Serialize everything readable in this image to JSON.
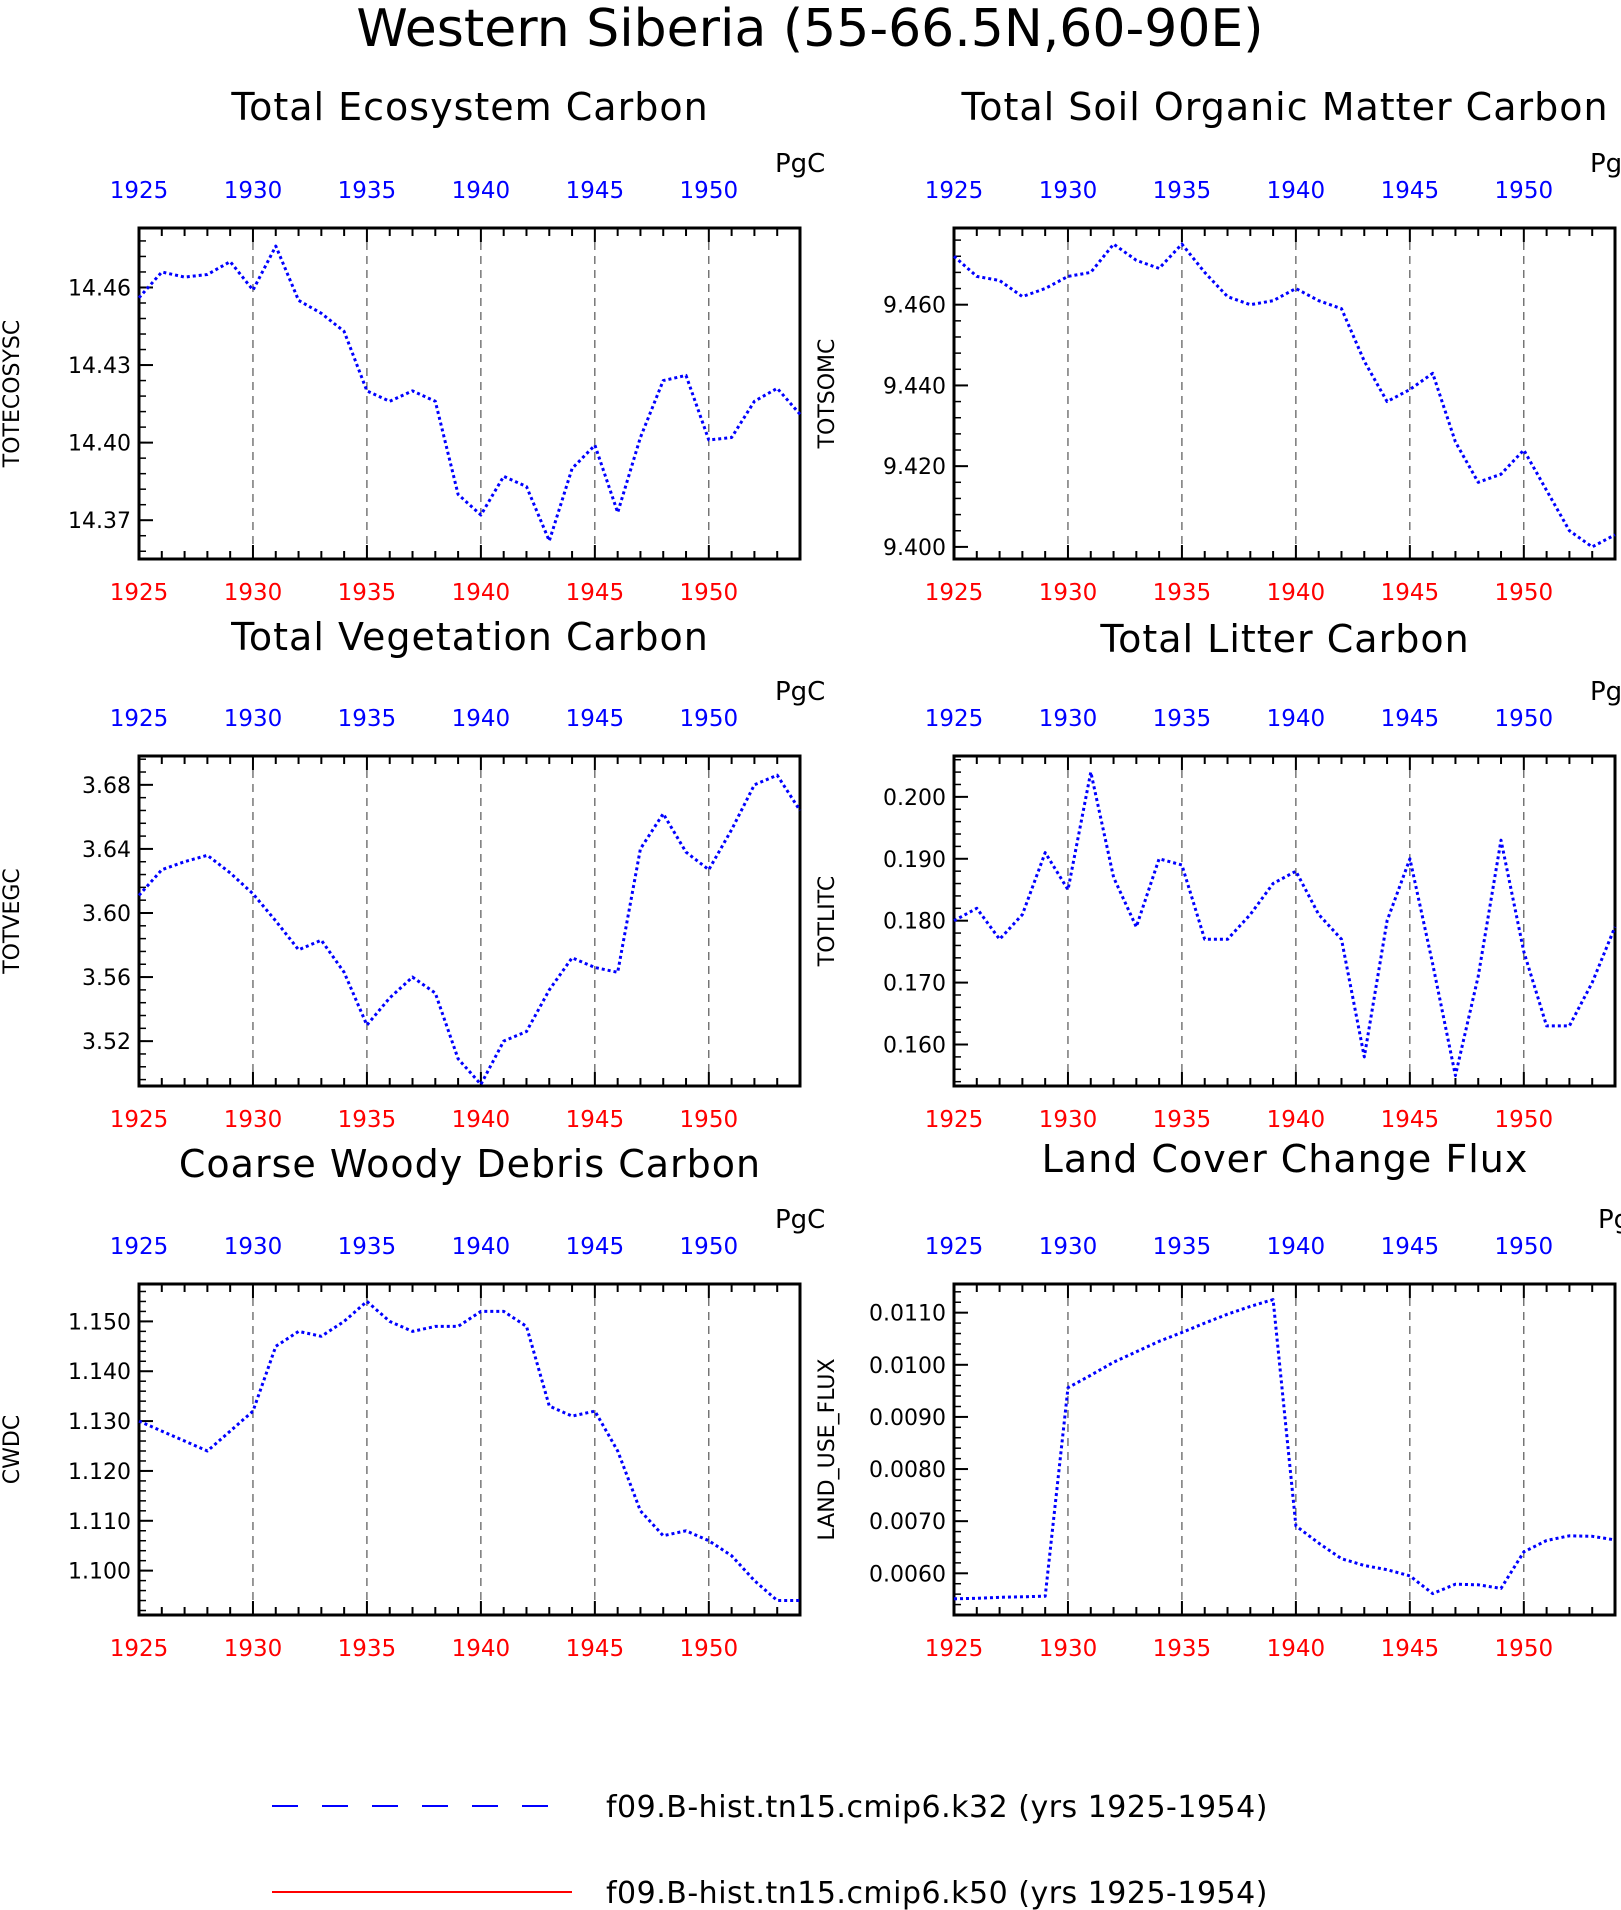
{
  "main_title": "Western Siberia (55-66.5N,60-90E)",
  "colors": {
    "series_k32": "#0000ff",
    "series_k50": "#ff0000",
    "top_ticks": "#0000ff",
    "bottom_ticks": "#ff0000",
    "grid": "#000000"
  },
  "legend": {
    "items": [
      {
        "label": "f09.B-hist.tn15.cmip6.k32 (yrs 1925-1954)",
        "style": "dashed",
        "color": "#0000ff"
      },
      {
        "label": "f09.B-hist.tn15.cmip6.k50 (yrs 1925-1954)",
        "style": "solid",
        "color": "#ff0000"
      }
    ]
  },
  "chart_data": [
    {
      "type": "line",
      "title": "Total Ecosystem Carbon",
      "ylabel": "TOTECOSYSC",
      "units": "PgC",
      "xlim": [
        1925,
        1954
      ],
      "ylim": [
        14.355,
        14.483
      ],
      "xticks": [
        1925,
        1930,
        1935,
        1940,
        1945,
        1950
      ],
      "yticks": [
        14.37,
        14.4,
        14.43,
        14.46
      ],
      "ytick_labels": [
        "14.37",
        "14.40",
        "14.43",
        "14.46"
      ],
      "grid": "vertical dashed at 1930, 1935, 1940, 1945, 1950",
      "x": [
        1925,
        1926,
        1927,
        1928,
        1929,
        1930,
        1931,
        1932,
        1933,
        1934,
        1935,
        1936,
        1937,
        1938,
        1939,
        1940,
        1941,
        1942,
        1943,
        1944,
        1945,
        1946,
        1947,
        1948,
        1949,
        1950,
        1951,
        1952,
        1953,
        1954
      ],
      "series": [
        {
          "values": [
            14.456,
            14.466,
            14.464,
            14.465,
            14.47,
            14.459,
            14.476,
            14.455,
            14.45,
            14.443,
            14.42,
            14.416,
            14.42,
            14.416,
            14.38,
            14.372,
            14.387,
            14.383,
            14.362,
            14.39,
            14.399,
            14.373,
            14.402,
            14.424,
            14.426,
            14.401,
            14.402,
            14.416,
            14.421,
            14.411
          ]
        }
      ]
    },
    {
      "type": "line",
      "title": "Total Soil Organic Matter Carbon",
      "ylabel": "TOTSOMC",
      "units": "PgC",
      "xlim": [
        1925,
        1954
      ],
      "ylim": [
        9.397,
        9.479
      ],
      "xticks": [
        1925,
        1930,
        1935,
        1940,
        1945,
        1950
      ],
      "yticks": [
        9.4,
        9.42,
        9.44,
        9.46
      ],
      "ytick_labels": [
        "9.400",
        "9.420",
        "9.440",
        "9.460"
      ],
      "grid": "vertical dashed at 1930, 1935, 1940, 1945, 1950",
      "x": [
        1925,
        1926,
        1927,
        1928,
        1929,
        1930,
        1931,
        1932,
        1933,
        1934,
        1935,
        1936,
        1937,
        1938,
        1939,
        1940,
        1941,
        1942,
        1943,
        1944,
        1945,
        1946,
        1947,
        1948,
        1949,
        1950,
        1951,
        1952,
        1953,
        1954
      ],
      "series": [
        {
          "values": [
            9.472,
            9.467,
            9.466,
            9.462,
            9.464,
            9.467,
            9.468,
            9.475,
            9.471,
            9.469,
            9.475,
            9.468,
            9.462,
            9.46,
            9.461,
            9.464,
            9.461,
            9.459,
            9.446,
            9.436,
            9.439,
            9.443,
            9.426,
            9.416,
            9.418,
            9.424,
            9.414,
            9.404,
            9.4,
            9.403
          ]
        }
      ]
    },
    {
      "type": "line",
      "title": "Total Vegetation Carbon",
      "ylabel": "TOTVEGC",
      "units": "PgC",
      "xlim": [
        1925,
        1954
      ],
      "ylim": [
        3.492,
        3.698
      ],
      "xticks": [
        1925,
        1930,
        1935,
        1940,
        1945,
        1950
      ],
      "yticks": [
        3.52,
        3.56,
        3.6,
        3.64,
        3.68
      ],
      "ytick_labels": [
        "3.52",
        "3.56",
        "3.60",
        "3.64",
        "3.68"
      ],
      "grid": "vertical dashed at 1930, 1935, 1940, 1945, 1950",
      "x": [
        1925,
        1926,
        1927,
        1928,
        1929,
        1930,
        1931,
        1932,
        1933,
        1934,
        1935,
        1936,
        1937,
        1938,
        1939,
        1940,
        1941,
        1942,
        1943,
        1944,
        1945,
        1946,
        1947,
        1948,
        1949,
        1950,
        1951,
        1952,
        1953,
        1954
      ],
      "series": [
        {
          "values": [
            3.611,
            3.627,
            3.632,
            3.636,
            3.625,
            3.612,
            3.595,
            3.577,
            3.583,
            3.563,
            3.53,
            3.547,
            3.56,
            3.55,
            3.509,
            3.493,
            3.52,
            3.526,
            3.552,
            3.572,
            3.566,
            3.563,
            3.64,
            3.662,
            3.638,
            3.627,
            3.652,
            3.68,
            3.686,
            3.664
          ]
        }
      ]
    },
    {
      "type": "line",
      "title": "Total Litter Carbon",
      "ylabel": "TOTLITC",
      "units": "PgC",
      "xlim": [
        1925,
        1954
      ],
      "ylim": [
        0.1533,
        0.2066
      ],
      "xticks": [
        1925,
        1930,
        1935,
        1940,
        1945,
        1950
      ],
      "yticks": [
        0.16,
        0.17,
        0.18,
        0.19,
        0.2
      ],
      "ytick_labels": [
        "0.160",
        "0.170",
        "0.180",
        "0.190",
        "0.200"
      ],
      "grid": "vertical dashed at 1930, 1935, 1940, 1945, 1950",
      "x": [
        1925,
        1926,
        1927,
        1928,
        1929,
        1930,
        1931,
        1932,
        1933,
        1934,
        1935,
        1936,
        1937,
        1938,
        1939,
        1940,
        1941,
        1942,
        1943,
        1944,
        1945,
        1946,
        1947,
        1948,
        1949,
        1950,
        1951,
        1952,
        1953,
        1954
      ],
      "series": [
        {
          "values": [
            0.18,
            0.182,
            0.177,
            0.181,
            0.191,
            0.185,
            0.204,
            0.187,
            0.179,
            0.19,
            0.189,
            0.177,
            0.177,
            0.181,
            0.186,
            0.188,
            0.181,
            0.177,
            0.158,
            0.18,
            0.19,
            0.173,
            0.155,
            0.171,
            0.193,
            0.175,
            0.163,
            0.163,
            0.17,
            0.179
          ]
        }
      ]
    },
    {
      "type": "line",
      "title": "Coarse Woody Debris Carbon",
      "ylabel": "CWDC",
      "units": "PgC",
      "xlim": [
        1925,
        1954
      ],
      "ylim": [
        1.0911,
        1.1575
      ],
      "xticks": [
        1925,
        1930,
        1935,
        1940,
        1945,
        1950
      ],
      "yticks": [
        1.1,
        1.11,
        1.12,
        1.13,
        1.14,
        1.15
      ],
      "ytick_labels": [
        "1.100",
        "1.110",
        "1.120",
        "1.130",
        "1.140",
        "1.150"
      ],
      "grid": "vertical dashed at 1930, 1935, 1940, 1945, 1950",
      "x": [
        1925,
        1926,
        1927,
        1928,
        1929,
        1930,
        1931,
        1932,
        1933,
        1934,
        1935,
        1936,
        1937,
        1938,
        1939,
        1940,
        1941,
        1942,
        1943,
        1944,
        1945,
        1946,
        1947,
        1948,
        1949,
        1950,
        1951,
        1952,
        1953,
        1954
      ],
      "series": [
        {
          "values": [
            1.13,
            1.128,
            1.126,
            1.124,
            1.128,
            1.132,
            1.145,
            1.148,
            1.147,
            1.15,
            1.154,
            1.15,
            1.148,
            1.149,
            1.149,
            1.152,
            1.152,
            1.149,
            1.133,
            1.131,
            1.132,
            1.124,
            1.112,
            1.107,
            1.108,
            1.106,
            1.103,
            1.098,
            1.094,
            1.094
          ]
        }
      ]
    },
    {
      "type": "line",
      "title": "Land Cover Change Flux",
      "ylabel": "LAND_USE_FLUX",
      "units": "PgC/y",
      "xlim": [
        1925,
        1954
      ],
      "ylim": [
        0.0052,
        0.01155
      ],
      "xticks": [
        1925,
        1930,
        1935,
        1940,
        1945,
        1950
      ],
      "yticks": [
        0.006,
        0.007,
        0.008,
        0.009,
        0.01,
        0.011
      ],
      "ytick_labels": [
        "0.0060",
        "0.0070",
        "0.0080",
        "0.0090",
        "0.0100",
        "0.0110"
      ],
      "grid": "vertical dashed at 1930, 1935, 1940, 1945, 1950",
      "x": [
        1925,
        1926,
        1927,
        1928,
        1929,
        1930,
        1931,
        1932,
        1933,
        1934,
        1935,
        1936,
        1937,
        1938,
        1939,
        1940,
        1941,
        1942,
        1943,
        1944,
        1945,
        1946,
        1947,
        1948,
        1949,
        1950,
        1951,
        1952,
        1953,
        1954
      ],
      "series": [
        {
          "values": [
            0.00551,
            0.00552,
            0.00554,
            0.00555,
            0.00556,
            0.00956,
            0.0098,
            0.01005,
            0.01025,
            0.01045,
            0.01062,
            0.0108,
            0.01097,
            0.01112,
            0.01125,
            0.00691,
            0.00658,
            0.00628,
            0.00615,
            0.00607,
            0.00595,
            0.00561,
            0.00579,
            0.00578,
            0.00571,
            0.00641,
            0.00663,
            0.00672,
            0.00671,
            0.00664
          ]
        }
      ]
    }
  ]
}
